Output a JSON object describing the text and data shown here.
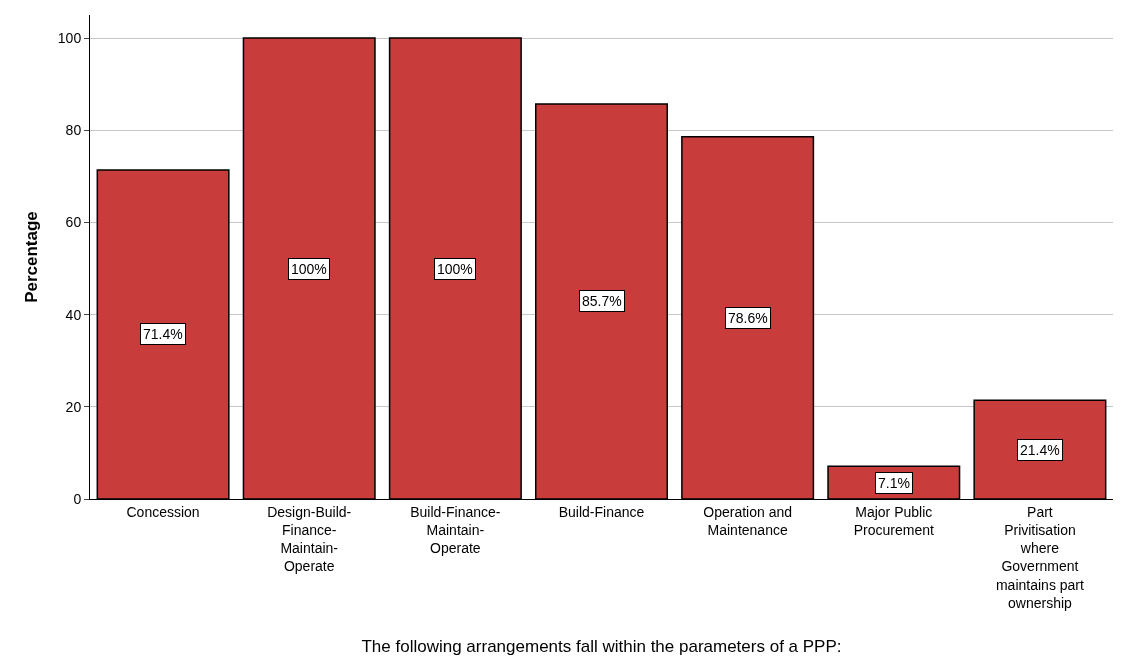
{
  "chart_data": {
    "type": "bar",
    "xlabel": "The following arrangements fall within the parameters of a PPP:",
    "ylabel": "Percentage",
    "categories": [
      "Concession",
      "Design-Build-Finance-Maintain-Operate",
      "Build-Finance-Maintain-Operate",
      "Build-Finance",
      "Operation and Maintenance",
      "Major Public Procurement",
      "Part Privitisation where Government maintains part ownership"
    ],
    "values": [
      71.4,
      100,
      100,
      85.7,
      78.6,
      7.1,
      21.4
    ],
    "value_labels": [
      "71.4%",
      "100%",
      "100%",
      "85.7%",
      "78.6%",
      "7.1%",
      "21.4%"
    ],
    "color": "#c83c3c",
    "ylim": [
      0,
      105
    ],
    "yticks": [
      0,
      20,
      40,
      60,
      80,
      100
    ],
    "grid": "y",
    "legend": false
  }
}
